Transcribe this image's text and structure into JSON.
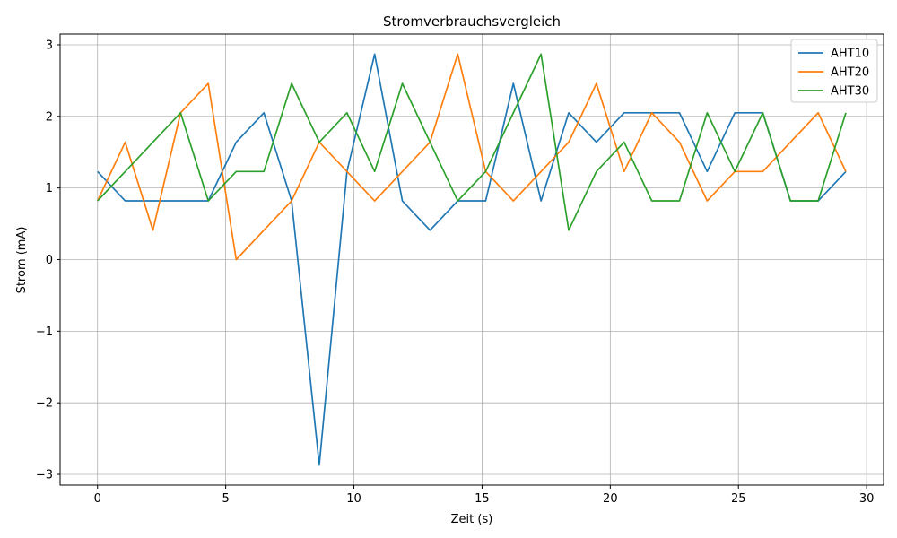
{
  "chart_data": {
    "type": "line",
    "title": "Stromverbrauchsvergleich",
    "xlabel": "Zeit (s)",
    "ylabel": "Strom (mA)",
    "xlim": [
      -1.46,
      30.66
    ],
    "ylim": [
      -3.15,
      3.15
    ],
    "xticks": [
      0,
      5,
      10,
      15,
      20,
      25,
      30
    ],
    "yticks": [
      -3,
      -2,
      -1,
      0,
      1,
      2,
      3
    ],
    "ytick_labels": [
      "−3",
      "−2",
      "−1",
      "0",
      "1",
      "2",
      "3"
    ],
    "grid": true,
    "legend_position": "top-right",
    "x": [
      0,
      1.08,
      2.16,
      3.24,
      4.32,
      5.41,
      6.49,
      7.57,
      8.65,
      9.73,
      10.81,
      11.89,
      12.97,
      14.05,
      15.14,
      16.22,
      17.3,
      18.38,
      19.46,
      20.54,
      21.62,
      22.7,
      23.78,
      24.86,
      25.95,
      27.03,
      28.11,
      29.19
    ],
    "series": [
      {
        "name": "AHT10",
        "color": "#1f77b4",
        "values": [
          1.23,
          0.82,
          0.82,
          0.82,
          0.82,
          1.64,
          2.05,
          0.82,
          -2.87,
          1.23,
          2.87,
          0.82,
          0.41,
          0.82,
          0.82,
          2.46,
          0.82,
          2.05,
          1.64,
          2.05,
          2.05,
          2.05,
          1.23,
          2.05,
          2.05,
          0.82,
          0.82,
          1.23
        ]
      },
      {
        "name": "AHT20",
        "color": "#ff7f0e",
        "values": [
          0.82,
          1.64,
          0.41,
          2.05,
          2.46,
          0.0,
          0.41,
          0.82,
          1.64,
          1.23,
          0.82,
          1.23,
          1.64,
          2.87,
          1.23,
          0.82,
          1.23,
          1.64,
          2.46,
          1.23,
          2.05,
          1.64,
          0.82,
          1.23,
          1.23,
          1.64,
          2.05,
          1.23
        ]
      },
      {
        "name": "AHT30",
        "color": "#2ca02c",
        "values": [
          0.82,
          1.23,
          1.64,
          2.05,
          0.82,
          1.23,
          1.23,
          2.46,
          1.64,
          2.05,
          1.23,
          2.46,
          1.64,
          0.82,
          1.23,
          2.05,
          2.87,
          0.41,
          1.23,
          1.64,
          0.82,
          0.82,
          2.05,
          1.23,
          2.05,
          0.82,
          0.82,
          2.05
        ]
      }
    ]
  }
}
